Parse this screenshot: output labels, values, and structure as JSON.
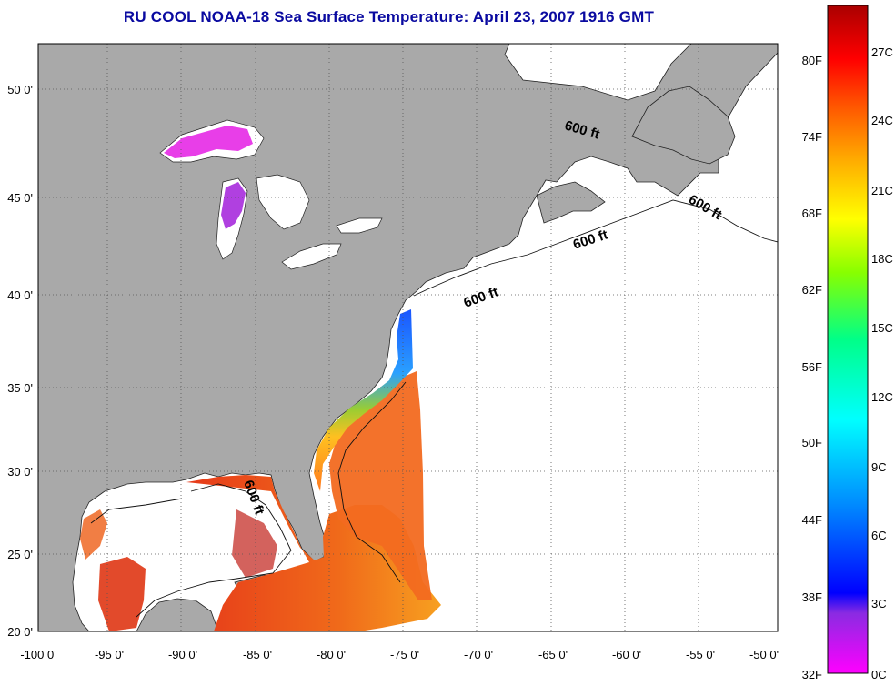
{
  "title": "RU COOL  NOAA-18  Sea Surface Temperature:  April 23, 2007 1916 GMT",
  "map": {
    "lon_range": [
      -100,
      -50
    ],
    "lat_range": [
      20,
      52.5
    ],
    "lat_ticks": [
      {
        "value": 50,
        "label": "50 0'"
      },
      {
        "value": 45,
        "label": "45 0'"
      },
      {
        "value": 40,
        "label": "40 0'"
      },
      {
        "value": 35,
        "label": "35 0'"
      },
      {
        "value": 30,
        "label": "30 0'"
      },
      {
        "value": 25,
        "label": "25 0'"
      },
      {
        "value": 20,
        "label": "20 0'"
      }
    ],
    "lon_ticks": [
      {
        "value": -100,
        "label": "-100 0'"
      },
      {
        "value": -95,
        "label": "-95 0'"
      },
      {
        "value": -90,
        "label": "-90 0'"
      },
      {
        "value": -85,
        "label": "-85 0'"
      },
      {
        "value": -80,
        "label": "-80 0'"
      },
      {
        "value": -75,
        "label": "-75 0'"
      },
      {
        "value": -70,
        "label": "-70 0'"
      },
      {
        "value": -65,
        "label": "-65 0'"
      },
      {
        "value": -60,
        "label": "-60 0'"
      },
      {
        "value": -55,
        "label": "-55 0'"
      },
      {
        "value": -50,
        "label": "-50 0'"
      }
    ],
    "isobath_label": "600 ft",
    "colors": {
      "land": "#a9a9a9",
      "ocean_nodata": "#ffffff",
      "grid": "#555555"
    }
  },
  "colorbar": {
    "celsius_ticks": [
      "27C",
      "24C",
      "21C",
      "18C",
      "15C",
      "12C",
      "9C",
      "6C",
      "3C",
      "0C"
    ],
    "fahrenheit_ticks": [
      "80F",
      "74F",
      "68F",
      "62F",
      "56F",
      "50F",
      "44F",
      "38F",
      "32F"
    ],
    "gradient_colors": [
      "#ff00ff",
      "#8a2be2",
      "#0000ff",
      "#0088ff",
      "#00ffff",
      "#00ff88",
      "#88ff00",
      "#ffff00",
      "#ffaa00",
      "#ff5500",
      "#ff0000",
      "#aa0000"
    ]
  }
}
